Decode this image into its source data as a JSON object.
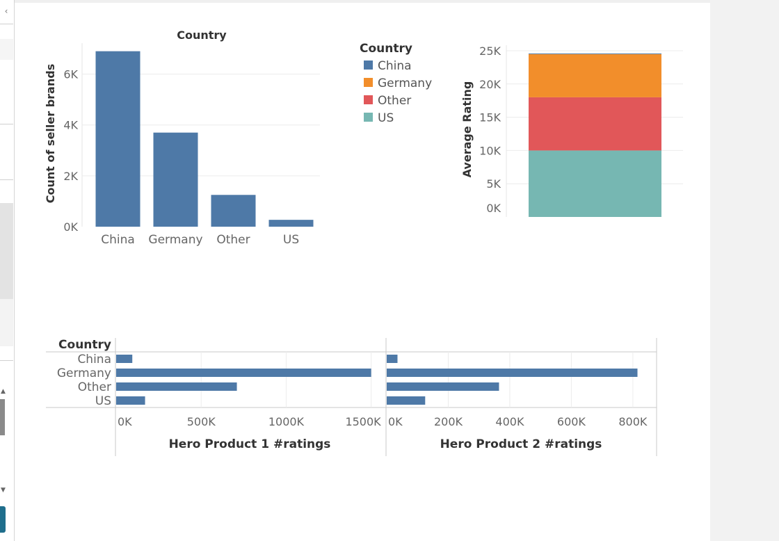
{
  "colors": {
    "bar": "#4e79a7",
    "China": "#4e79a7",
    "Germany": "#f28e2b",
    "Other": "#e15759",
    "US": "#76b7b2",
    "grid": "#ececec",
    "axis_text": "#666666",
    "title_text": "#333333"
  },
  "legend": {
    "title": "Country",
    "items": [
      {
        "label": "China",
        "color": "#4e79a7"
      },
      {
        "label": "Germany",
        "color": "#f28e2b"
      },
      {
        "label": "Other",
        "color": "#e15759"
      },
      {
        "label": "US",
        "color": "#76b7b2"
      }
    ]
  },
  "chart_data": [
    {
      "type": "bar",
      "title": "Country",
      "ylabel": "Count of seller brands",
      "xlabel": "",
      "categories": [
        "China",
        "Germany",
        "Other",
        "US"
      ],
      "values": [
        6900,
        3700,
        1250,
        270
      ],
      "ylim": [
        0,
        7000
      ],
      "yticks": [
        0,
        2000,
        4000,
        6000
      ],
      "ytick_labels": [
        "0K",
        "2K",
        "4K",
        "6K"
      ],
      "grid": true
    },
    {
      "type": "bar",
      "stacked": true,
      "title": "",
      "ylabel": "Average Rating",
      "categories": [
        ""
      ],
      "series": [
        {
          "name": "US",
          "values": [
            10000
          ]
        },
        {
          "name": "Other",
          "values": [
            8000
          ]
        },
        {
          "name": "Germany",
          "values": [
            6500
          ]
        },
        {
          "name": "China",
          "values": [
            100
          ]
        }
      ],
      "ylim": [
        0,
        25000
      ],
      "yticks": [
        0,
        5000,
        10000,
        15000,
        20000,
        25000
      ],
      "ytick_labels": [
        "0K",
        "5K",
        "10K",
        "15K",
        "20K",
        "25K"
      ],
      "grid": true
    },
    {
      "type": "bar",
      "orientation": "horizontal",
      "row_header": "Country",
      "categories": [
        "China",
        "Germany",
        "Other",
        "US"
      ],
      "panels": [
        {
          "xlabel": "Hero Product 1 #ratings",
          "values": [
            95000,
            1500000,
            710000,
            170000
          ],
          "xlim": [
            0,
            1530000
          ],
          "xticks": [
            0,
            500000,
            1000000,
            1500000
          ],
          "xtick_labels": [
            "0K",
            "500K",
            "1000K",
            "1500K"
          ]
        },
        {
          "xlabel": "Hero Product 2 #ratings",
          "values": [
            35000,
            815000,
            365000,
            125000
          ],
          "xlim": [
            0,
            850000
          ],
          "xticks": [
            0,
            200000,
            400000,
            600000,
            800000
          ],
          "xtick_labels": [
            "0K",
            "200K",
            "400K",
            "600K",
            "800K"
          ]
        }
      ],
      "grid": true
    }
  ]
}
